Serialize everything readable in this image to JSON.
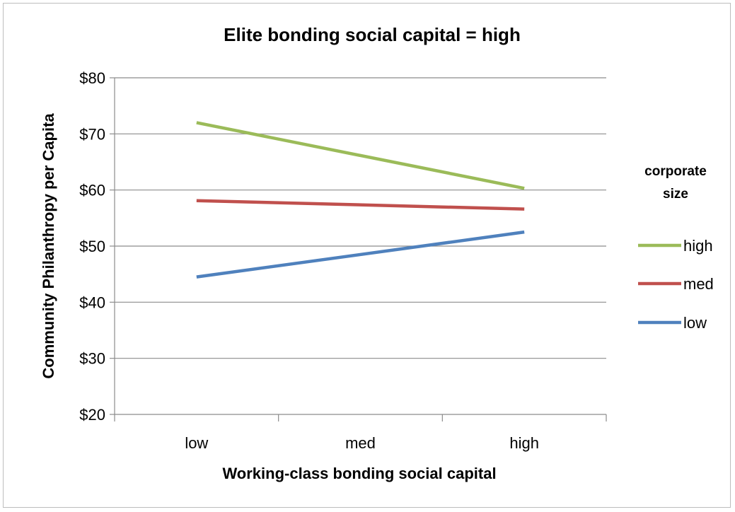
{
  "chart_data": {
    "type": "line",
    "title": "Elite bonding social capital = high",
    "xlabel": "Working-class bonding social capital",
    "ylabel": "Community Philanthropy per Capita",
    "categories": [
      "low",
      "med",
      "high"
    ],
    "ylim": [
      20,
      80
    ],
    "yticks": [
      "$20",
      "$30",
      "$40",
      "$50",
      "$60",
      "$70",
      "$80"
    ],
    "grid": true,
    "legend": {
      "title_lines": [
        "corporate",
        "size"
      ],
      "placement": "right"
    },
    "series": [
      {
        "name": "high",
        "color": "#9bbb59",
        "values": [
          72.0,
          null,
          60.3
        ]
      },
      {
        "name": "med",
        "color": "#c0504d",
        "values": [
          58.1,
          null,
          56.6
        ]
      },
      {
        "name": "low",
        "color": "#4f81bd",
        "values": [
          44.5,
          null,
          52.5
        ]
      }
    ]
  }
}
